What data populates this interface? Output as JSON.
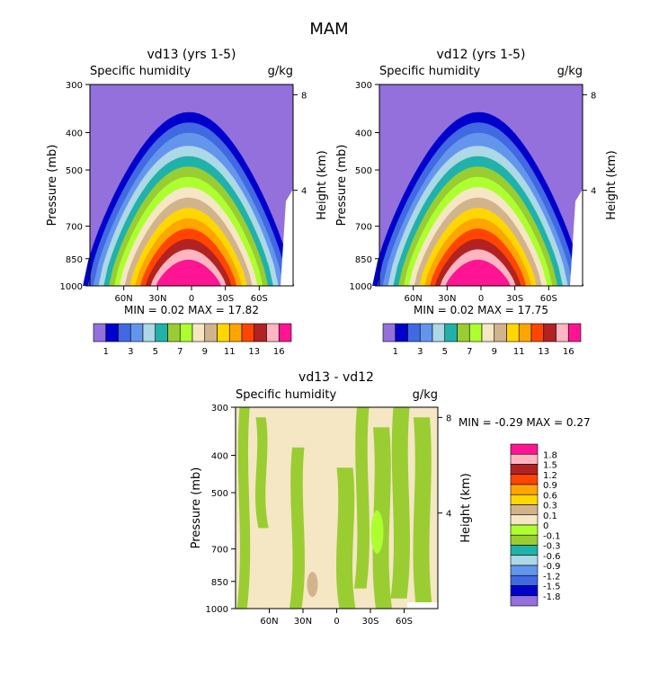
{
  "figure_title": "MAM",
  "panels": [
    {
      "title": "vd13 (yrs 1-5)",
      "variable": "Specific humidity",
      "units": "g/kg",
      "ylabel": "Pressure (mb)",
      "ylabel_right": "Height (km)",
      "stats": "MIN =   0.02   MAX =  17.82"
    },
    {
      "title": "vd12 (yrs 1-5)",
      "variable": "Specific humidity",
      "units": "g/kg",
      "ylabel": "Pressure (mb)",
      "ylabel_right": "Height (km)",
      "stats": "MIN =   0.02   MAX =  17.75"
    },
    {
      "title": "vd13 - vd12",
      "variable": "Specific humidity",
      "units": "g/kg",
      "ylabel": "Pressure (mb)",
      "ylabel_right": "Height (km)",
      "stats": "MIN =  -0.29   MAX =   0.27"
    }
  ],
  "chart_data": [
    {
      "type": "heatmap",
      "title": "vd13 (yrs 1-5)",
      "x_ticks": [
        "60N",
        "30N",
        "0",
        "30S",
        "60S"
      ],
      "x_tick_lat": [
        60,
        30,
        0,
        -30,
        -60
      ],
      "xlim_lat": [
        90,
        -90
      ],
      "y_ticks": [
        "300",
        "400",
        "500",
        "700",
        "850",
        "1000"
      ],
      "y_tick_values": [
        300,
        400,
        500,
        700,
        850,
        1000
      ],
      "ylim": [
        300,
        1000
      ],
      "height_ticks": [
        "8",
        "4"
      ],
      "height_tick_km": [
        8,
        4
      ],
      "contour_levels": [
        1,
        2,
        3,
        4,
        5,
        6,
        7,
        8,
        9,
        10,
        11,
        12,
        13,
        14,
        16
      ],
      "colorbar_labels": [
        "1",
        "3",
        "5",
        "7",
        "9",
        "11",
        "13",
        "16"
      ],
      "colorbar_label_levels": [
        1,
        3,
        5,
        7,
        9,
        11,
        13,
        16
      ],
      "min": 0.02,
      "max": 17.82
    },
    {
      "type": "heatmap",
      "title": "vd12 (yrs 1-5)",
      "x_ticks": [
        "60N",
        "30N",
        "0",
        "30S",
        "60S"
      ],
      "x_tick_lat": [
        60,
        30,
        0,
        -30,
        -60
      ],
      "xlim_lat": [
        90,
        -90
      ],
      "y_ticks": [
        "300",
        "400",
        "500",
        "700",
        "850",
        "1000"
      ],
      "y_tick_values": [
        300,
        400,
        500,
        700,
        850,
        1000
      ],
      "ylim": [
        300,
        1000
      ],
      "height_ticks": [
        "8",
        "4"
      ],
      "height_tick_km": [
        8,
        4
      ],
      "contour_levels": [
        1,
        2,
        3,
        4,
        5,
        6,
        7,
        8,
        9,
        10,
        11,
        12,
        13,
        14,
        16
      ],
      "colorbar_labels": [
        "1",
        "3",
        "5",
        "7",
        "9",
        "11",
        "13",
        "16"
      ],
      "colorbar_label_levels": [
        1,
        3,
        5,
        7,
        9,
        11,
        13,
        16
      ],
      "min": 0.02,
      "max": 17.75
    },
    {
      "type": "heatmap",
      "title": "vd13 - vd12",
      "x_ticks": [
        "60N",
        "30N",
        "0",
        "30S",
        "60S"
      ],
      "x_tick_lat": [
        60,
        30,
        0,
        -30,
        -60
      ],
      "xlim_lat": [
        90,
        -90
      ],
      "y_ticks": [
        "300",
        "400",
        "500",
        "700",
        "850",
        "1000"
      ],
      "y_tick_values": [
        300,
        400,
        500,
        700,
        850,
        1000
      ],
      "ylim": [
        300,
        1000
      ],
      "height_ticks": [
        "8",
        "4"
      ],
      "height_tick_km": [
        8,
        4
      ],
      "contour_levels": [
        1.8,
        1.5,
        1.2,
        0.9,
        0.6,
        0.3,
        0.1,
        0,
        -0.1,
        -0.3,
        -0.6,
        -0.9,
        -1.2,
        -1.5,
        -1.8
      ],
      "colorbar_labels": [
        "1.8",
        "1.5",
        "1.2",
        "0.9",
        "0.6",
        "0.3",
        "0.1",
        "0",
        "-0.1",
        "-0.3",
        "-0.6",
        "-0.9",
        "-1.2",
        "-1.5",
        "-1.8"
      ],
      "min": -0.29,
      "max": 0.27
    }
  ],
  "palette": [
    "#9370db",
    "#0000cd",
    "#4169e1",
    "#6495ed",
    "#add8e6",
    "#20b2aa",
    "#9acd32",
    "#adff2f",
    "#f5e6c4",
    "#d2b48c",
    "#ffd700",
    "#ffa500",
    "#ff4500",
    "#b22222",
    "#ffb6c1",
    "#ff1493"
  ],
  "colors": {
    "axis": "#000000",
    "background": "#ffffff"
  }
}
